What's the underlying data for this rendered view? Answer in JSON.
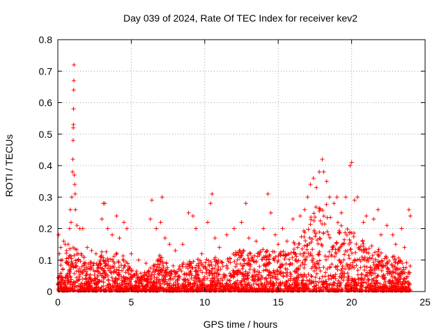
{
  "chart_data": {
    "type": "scatter",
    "title": "Day 039 of 2024, Rate Of TEC Index for receiver kev2",
    "xlabel": "GPS time / hours",
    "ylabel": "ROTI / TECUs",
    "xlim": [
      0,
      25
    ],
    "ylim": [
      0,
      0.8
    ],
    "x_ticks": [
      0,
      5,
      10,
      15,
      20,
      25
    ],
    "y_ticks": [
      0,
      0.1,
      0.2,
      0.3,
      0.4,
      0.5,
      0.6,
      0.7,
      0.8
    ],
    "x_tick_labels": [
      "0",
      "5",
      "10",
      "15",
      "20",
      "25"
    ],
    "y_tick_labels": [
      "0",
      "0.1",
      "0.2",
      "0.3",
      "0.4",
      "0.5",
      "0.6",
      "0.7",
      "0.8"
    ],
    "grid": true,
    "marker": "+",
    "color": "#ff0000",
    "series": [
      {
        "name": "ROTI",
        "points": [
          [
            0.05,
            0.18
          ],
          [
            0.1,
            0.12
          ],
          [
            0.2,
            0.14
          ],
          [
            0.3,
            0.1
          ],
          [
            0.4,
            0.16
          ],
          [
            0.5,
            0.15
          ],
          [
            0.6,
            0.13
          ],
          [
            0.7,
            0.15
          ],
          [
            0.8,
            0.2
          ],
          [
            0.85,
            0.26
          ],
          [
            0.9,
            0.22
          ],
          [
            0.95,
            0.3
          ],
          [
            1.0,
            0.38
          ],
          [
            1.02,
            0.42
          ],
          [
            1.04,
            0.48
          ],
          [
            1.05,
            0.52
          ],
          [
            1.06,
            0.53
          ],
          [
            1.07,
            0.58
          ],
          [
            1.08,
            0.64
          ],
          [
            1.09,
            0.67
          ],
          [
            1.1,
            0.72
          ],
          [
            1.12,
            0.37
          ],
          [
            1.15,
            0.34
          ],
          [
            1.18,
            0.31
          ],
          [
            1.2,
            0.26
          ],
          [
            1.3,
            0.21
          ],
          [
            1.5,
            0.2
          ],
          [
            1.7,
            0.2
          ],
          [
            2.0,
            0.14
          ],
          [
            2.3,
            0.13
          ],
          [
            2.6,
            0.12
          ],
          [
            3.0,
            0.23
          ],
          [
            3.1,
            0.28
          ],
          [
            3.2,
            0.28
          ],
          [
            3.4,
            0.2
          ],
          [
            3.7,
            0.18
          ],
          [
            4.0,
            0.24
          ],
          [
            4.2,
            0.17
          ],
          [
            4.5,
            0.22
          ],
          [
            4.7,
            0.2
          ],
          [
            5.0,
            0.12
          ],
          [
            5.5,
            0.1
          ],
          [
            6.0,
            0.09
          ],
          [
            6.3,
            0.23
          ],
          [
            6.4,
            0.29
          ],
          [
            6.7,
            0.2
          ],
          [
            7.0,
            0.22
          ],
          [
            7.1,
            0.3
          ],
          [
            7.3,
            0.17
          ],
          [
            7.6,
            0.15
          ],
          [
            8.0,
            0.13
          ],
          [
            8.5,
            0.15
          ],
          [
            8.9,
            0.25
          ],
          [
            9.2,
            0.24
          ],
          [
            9.4,
            0.2
          ],
          [
            9.8,
            0.12
          ],
          [
            10.2,
            0.22
          ],
          [
            10.4,
            0.28
          ],
          [
            10.5,
            0.31
          ],
          [
            10.7,
            0.17
          ],
          [
            11.0,
            0.14
          ],
          [
            11.5,
            0.18
          ],
          [
            12.0,
            0.2
          ],
          [
            12.5,
            0.22
          ],
          [
            12.8,
            0.28
          ],
          [
            13.0,
            0.17
          ],
          [
            13.5,
            0.16
          ],
          [
            14.0,
            0.2
          ],
          [
            14.3,
            0.31
          ],
          [
            14.5,
            0.25
          ],
          [
            14.8,
            0.18
          ],
          [
            15.0,
            0.15
          ],
          [
            15.3,
            0.2
          ],
          [
            15.6,
            0.16
          ],
          [
            16.0,
            0.23
          ],
          [
            16.5,
            0.24
          ],
          [
            16.8,
            0.26
          ],
          [
            17.0,
            0.3
          ],
          [
            17.2,
            0.34
          ],
          [
            17.4,
            0.36
          ],
          [
            17.6,
            0.33
          ],
          [
            17.8,
            0.38
          ],
          [
            18.0,
            0.42
          ],
          [
            18.1,
            0.38
          ],
          [
            18.3,
            0.35
          ],
          [
            18.5,
            0.3
          ],
          [
            18.8,
            0.28
          ],
          [
            19.0,
            0.3
          ],
          [
            19.3,
            0.25
          ],
          [
            19.6,
            0.3
          ],
          [
            19.9,
            0.4
          ],
          [
            20.0,
            0.41
          ],
          [
            20.2,
            0.29
          ],
          [
            20.4,
            0.3
          ],
          [
            20.8,
            0.22
          ],
          [
            21.0,
            0.24
          ],
          [
            21.5,
            0.23
          ],
          [
            21.8,
            0.26
          ],
          [
            22.0,
            0.18
          ],
          [
            22.4,
            0.21
          ],
          [
            22.8,
            0.18
          ],
          [
            23.0,
            0.15
          ],
          [
            23.4,
            0.2
          ],
          [
            23.6,
            0.14
          ],
          [
            23.9,
            0.26
          ],
          [
            24.0,
            0.24
          ]
        ],
        "envelope": {
          "hours": [
            0,
            0.5,
            1,
            1.5,
            2,
            2.5,
            3,
            3.5,
            4,
            4.5,
            5,
            5.5,
            6,
            6.5,
            7,
            7.5,
            8,
            8.5,
            9,
            9.5,
            10,
            10.5,
            11,
            11.5,
            12,
            12.5,
            13,
            13.5,
            14,
            14.5,
            15,
            15.5,
            16,
            16.5,
            17,
            17.5,
            18,
            18.5,
            19,
            19.5,
            20,
            20.5,
            21,
            21.5,
            22,
            22.5,
            23,
            23.5,
            24
          ],
          "dense_upper": [
            0.1,
            0.12,
            0.14,
            0.13,
            0.1,
            0.09,
            0.13,
            0.12,
            0.12,
            0.11,
            0.07,
            0.06,
            0.06,
            0.08,
            0.12,
            0.09,
            0.08,
            0.09,
            0.1,
            0.1,
            0.1,
            0.11,
            0.1,
            0.11,
            0.12,
            0.13,
            0.12,
            0.12,
            0.14,
            0.13,
            0.12,
            0.13,
            0.15,
            0.18,
            0.22,
            0.26,
            0.3,
            0.26,
            0.22,
            0.2,
            0.2,
            0.17,
            0.15,
            0.14,
            0.13,
            0.12,
            0.11,
            0.1,
            0.09
          ]
        }
      }
    ]
  }
}
